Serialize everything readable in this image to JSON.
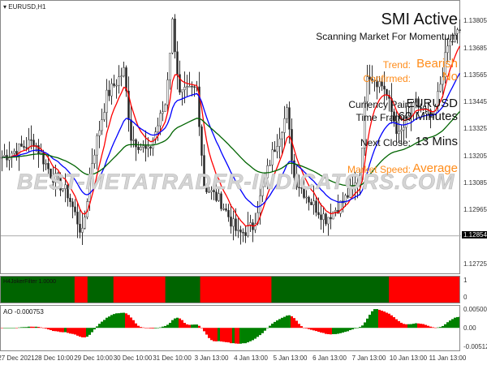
{
  "chart": {
    "symbol_label": "EURUSD,H1",
    "bid": "1.12854"
  },
  "price_axis": [
    "1.13805",
    "1.13685",
    "1.13565",
    "1.13445",
    "1.13325",
    "1.13205",
    "1.13085",
    "1.12965",
    "1.12725"
  ],
  "price_range": [
    1.1268,
    1.139
  ],
  "time_axis": [
    "27 Dec 2021",
    "28 Dec 10:00",
    "29 Dec 10:00",
    "30 Dec 10:00",
    "31 Dec 10:00",
    "3 Jan 13:00",
    "4 Jan 13:00",
    "5 Jan 13:00",
    "6 Jan 13:00",
    "7 Jan 13:00",
    "10 Jan 13:00",
    "11 Jan 13:00"
  ],
  "close_path": [
    [
      0,
      1.13204
    ],
    [
      7,
      1.13241
    ],
    [
      13,
      1.13277
    ],
    [
      20,
      1.13132
    ],
    [
      27,
      1.13041
    ],
    [
      33,
      1.12859
    ],
    [
      37,
      1.13186
    ],
    [
      43,
      1.13477
    ],
    [
      50,
      1.13587
    ],
    [
      53,
      1.13295
    ],
    [
      60,
      1.13223
    ],
    [
      67,
      1.13441
    ],
    [
      70,
      1.13805
    ],
    [
      73,
      1.13477
    ],
    [
      80,
      1.13514
    ],
    [
      83,
      1.13077
    ],
    [
      90,
      1.13004
    ],
    [
      97,
      1.12859
    ],
    [
      103,
      1.12895
    ],
    [
      110,
      1.13186
    ],
    [
      117,
      1.13405
    ],
    [
      120,
      1.13113
    ],
    [
      127,
      1.13004
    ],
    [
      133,
      1.12932
    ],
    [
      140,
      1.13004
    ],
    [
      147,
      1.13113
    ],
    [
      150,
      1.13587
    ],
    [
      157,
      1.13514
    ],
    [
      163,
      1.13295
    ],
    [
      170,
      1.13441
    ],
    [
      177,
      1.13368
    ],
    [
      183,
      1.13696
    ],
    [
      188,
      1.13769
    ]
  ],
  "moving_averages": [
    {
      "period": 8,
      "color": "#ff0000"
    },
    {
      "period": 21,
      "color": "#0000ff"
    },
    {
      "period": 60,
      "color": "#006400"
    }
  ],
  "panel": {
    "title": "SMI Active",
    "subtitle": "Scanning Market For Momentum",
    "trend_label": "Trend:",
    "trend_value": "Bearish",
    "confirmed_label": "Confirmed:",
    "confirmed_value": "No",
    "pair_label": "Currency Pair:",
    "pair_value": "EURUSD",
    "tf_label": "Time Frame:",
    "tf_value": "60 Minutes",
    "close_label": "Next Close:",
    "close_value": "13 Mins",
    "speed_label": "Market Speed:",
    "speed_value": "Average"
  },
  "watermark": "BEST-METATRADER-INDICATORS.COM",
  "joker": {
    "label": "H4JokerFilter 1.0000",
    "axis": [
      "1",
      "0"
    ],
    "segments": [
      [
        "up",
        91
      ],
      [
        "down",
        16
      ],
      [
        "up",
        32
      ],
      [
        "down",
        64
      ],
      [
        "up",
        43
      ],
      [
        "down",
        88
      ],
      [
        "up",
        145
      ],
      [
        "down",
        87
      ]
    ],
    "colors": {
      "up": "#006400",
      "down": "#ff0000"
    }
  },
  "ao": {
    "label": "AO -0.000753",
    "axis": [
      "0.005003",
      "0.00",
      "-0.005126"
    ],
    "range": [
      -0.005126,
      0.005003
    ],
    "colors": {
      "up": "#008000",
      "down": "#ff0000"
    }
  }
}
